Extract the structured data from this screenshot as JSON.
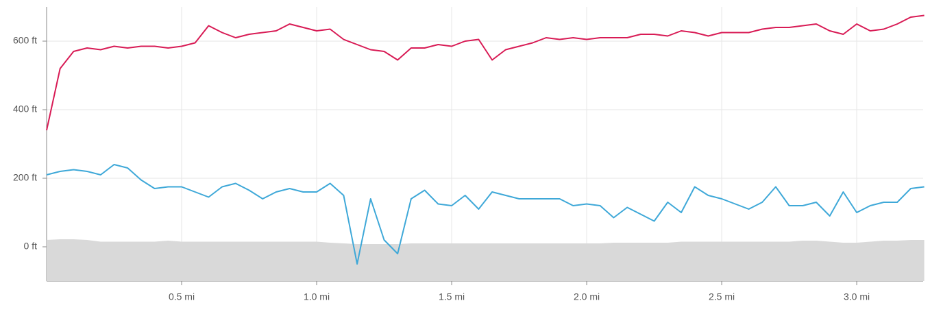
{
  "chart_data": {
    "type": "line",
    "x": [
      0,
      0.05,
      0.1,
      0.15,
      0.2,
      0.25,
      0.3,
      0.35,
      0.4,
      0.45,
      0.5,
      0.55,
      0.6,
      0.65,
      0.7,
      0.75,
      0.8,
      0.85,
      0.9,
      0.95,
      1.0,
      1.05,
      1.1,
      1.15,
      1.2,
      1.25,
      1.3,
      1.35,
      1.4,
      1.45,
      1.5,
      1.55,
      1.6,
      1.65,
      1.7,
      1.75,
      1.8,
      1.85,
      1.9,
      1.95,
      2.0,
      2.05,
      2.1,
      2.15,
      2.2,
      2.25,
      2.3,
      2.35,
      2.4,
      2.45,
      2.5,
      2.55,
      2.6,
      2.65,
      2.7,
      2.75,
      2.8,
      2.85,
      2.9,
      2.95,
      3.0,
      3.05,
      3.1,
      3.15,
      3.2,
      3.25
    ],
    "series": [
      {
        "kind": "area",
        "color": "#d9d9d9",
        "values": [
          20,
          22,
          22,
          20,
          15,
          15,
          15,
          15,
          15,
          18,
          15,
          15,
          15,
          15,
          15,
          15,
          15,
          15,
          15,
          15,
          15,
          12,
          10,
          8,
          8,
          8,
          8,
          10,
          10,
          10,
          10,
          10,
          10,
          10,
          10,
          10,
          10,
          10,
          10,
          10,
          10,
          10,
          12,
          12,
          12,
          12,
          12,
          15,
          15,
          15,
          15,
          15,
          15,
          15,
          15,
          15,
          18,
          18,
          15,
          12,
          12,
          15,
          18,
          18,
          20,
          20
        ]
      },
      {
        "kind": "line",
        "color": "#d81b55",
        "values": [
          340,
          520,
          570,
          580,
          575,
          585,
          580,
          585,
          585,
          580,
          585,
          595,
          645,
          625,
          610,
          620,
          625,
          630,
          650,
          640,
          630,
          635,
          605,
          590,
          575,
          570,
          545,
          580,
          580,
          590,
          585,
          600,
          605,
          545,
          575,
          585,
          595,
          610,
          605,
          610,
          605,
          610,
          610,
          610,
          620,
          620,
          615,
          630,
          625,
          615,
          625,
          625,
          625,
          635,
          640,
          640,
          645,
          650,
          630,
          620,
          650,
          630,
          635,
          650,
          670,
          675
        ]
      },
      {
        "kind": "line",
        "color": "#3ea8d8",
        "values": [
          210,
          220,
          225,
          220,
          210,
          240,
          230,
          195,
          170,
          175,
          175,
          160,
          145,
          175,
          185,
          165,
          140,
          160,
          170,
          160,
          160,
          185,
          150,
          -50,
          140,
          20,
          -20,
          140,
          165,
          125,
          120,
          150,
          110,
          160,
          150,
          140,
          140,
          140,
          140,
          120,
          125,
          120,
          85,
          115,
          95,
          75,
          130,
          100,
          175,
          150,
          140,
          125,
          110,
          130,
          175,
          120,
          120,
          130,
          90,
          160,
          100,
          120,
          130,
          130,
          170,
          175
        ]
      }
    ],
    "xlim": [
      0,
      3.246
    ],
    "ylim": [
      -100,
      700
    ],
    "xticks": [
      {
        "value": 0.5,
        "label": "0.5 mi"
      },
      {
        "value": 1.0,
        "label": "1.0 mi"
      },
      {
        "value": 1.5,
        "label": "1.5 mi"
      },
      {
        "value": 2.0,
        "label": "2.0 mi"
      },
      {
        "value": 2.5,
        "label": "2.5 mi"
      },
      {
        "value": 3.0,
        "label": "3.0 mi"
      }
    ],
    "yticks": [
      {
        "value": 0,
        "label": "0 ft"
      },
      {
        "value": 200,
        "label": "200 ft"
      },
      {
        "value": 400,
        "label": "400 ft"
      },
      {
        "value": 600,
        "label": "600 ft"
      }
    ],
    "grid": true
  }
}
